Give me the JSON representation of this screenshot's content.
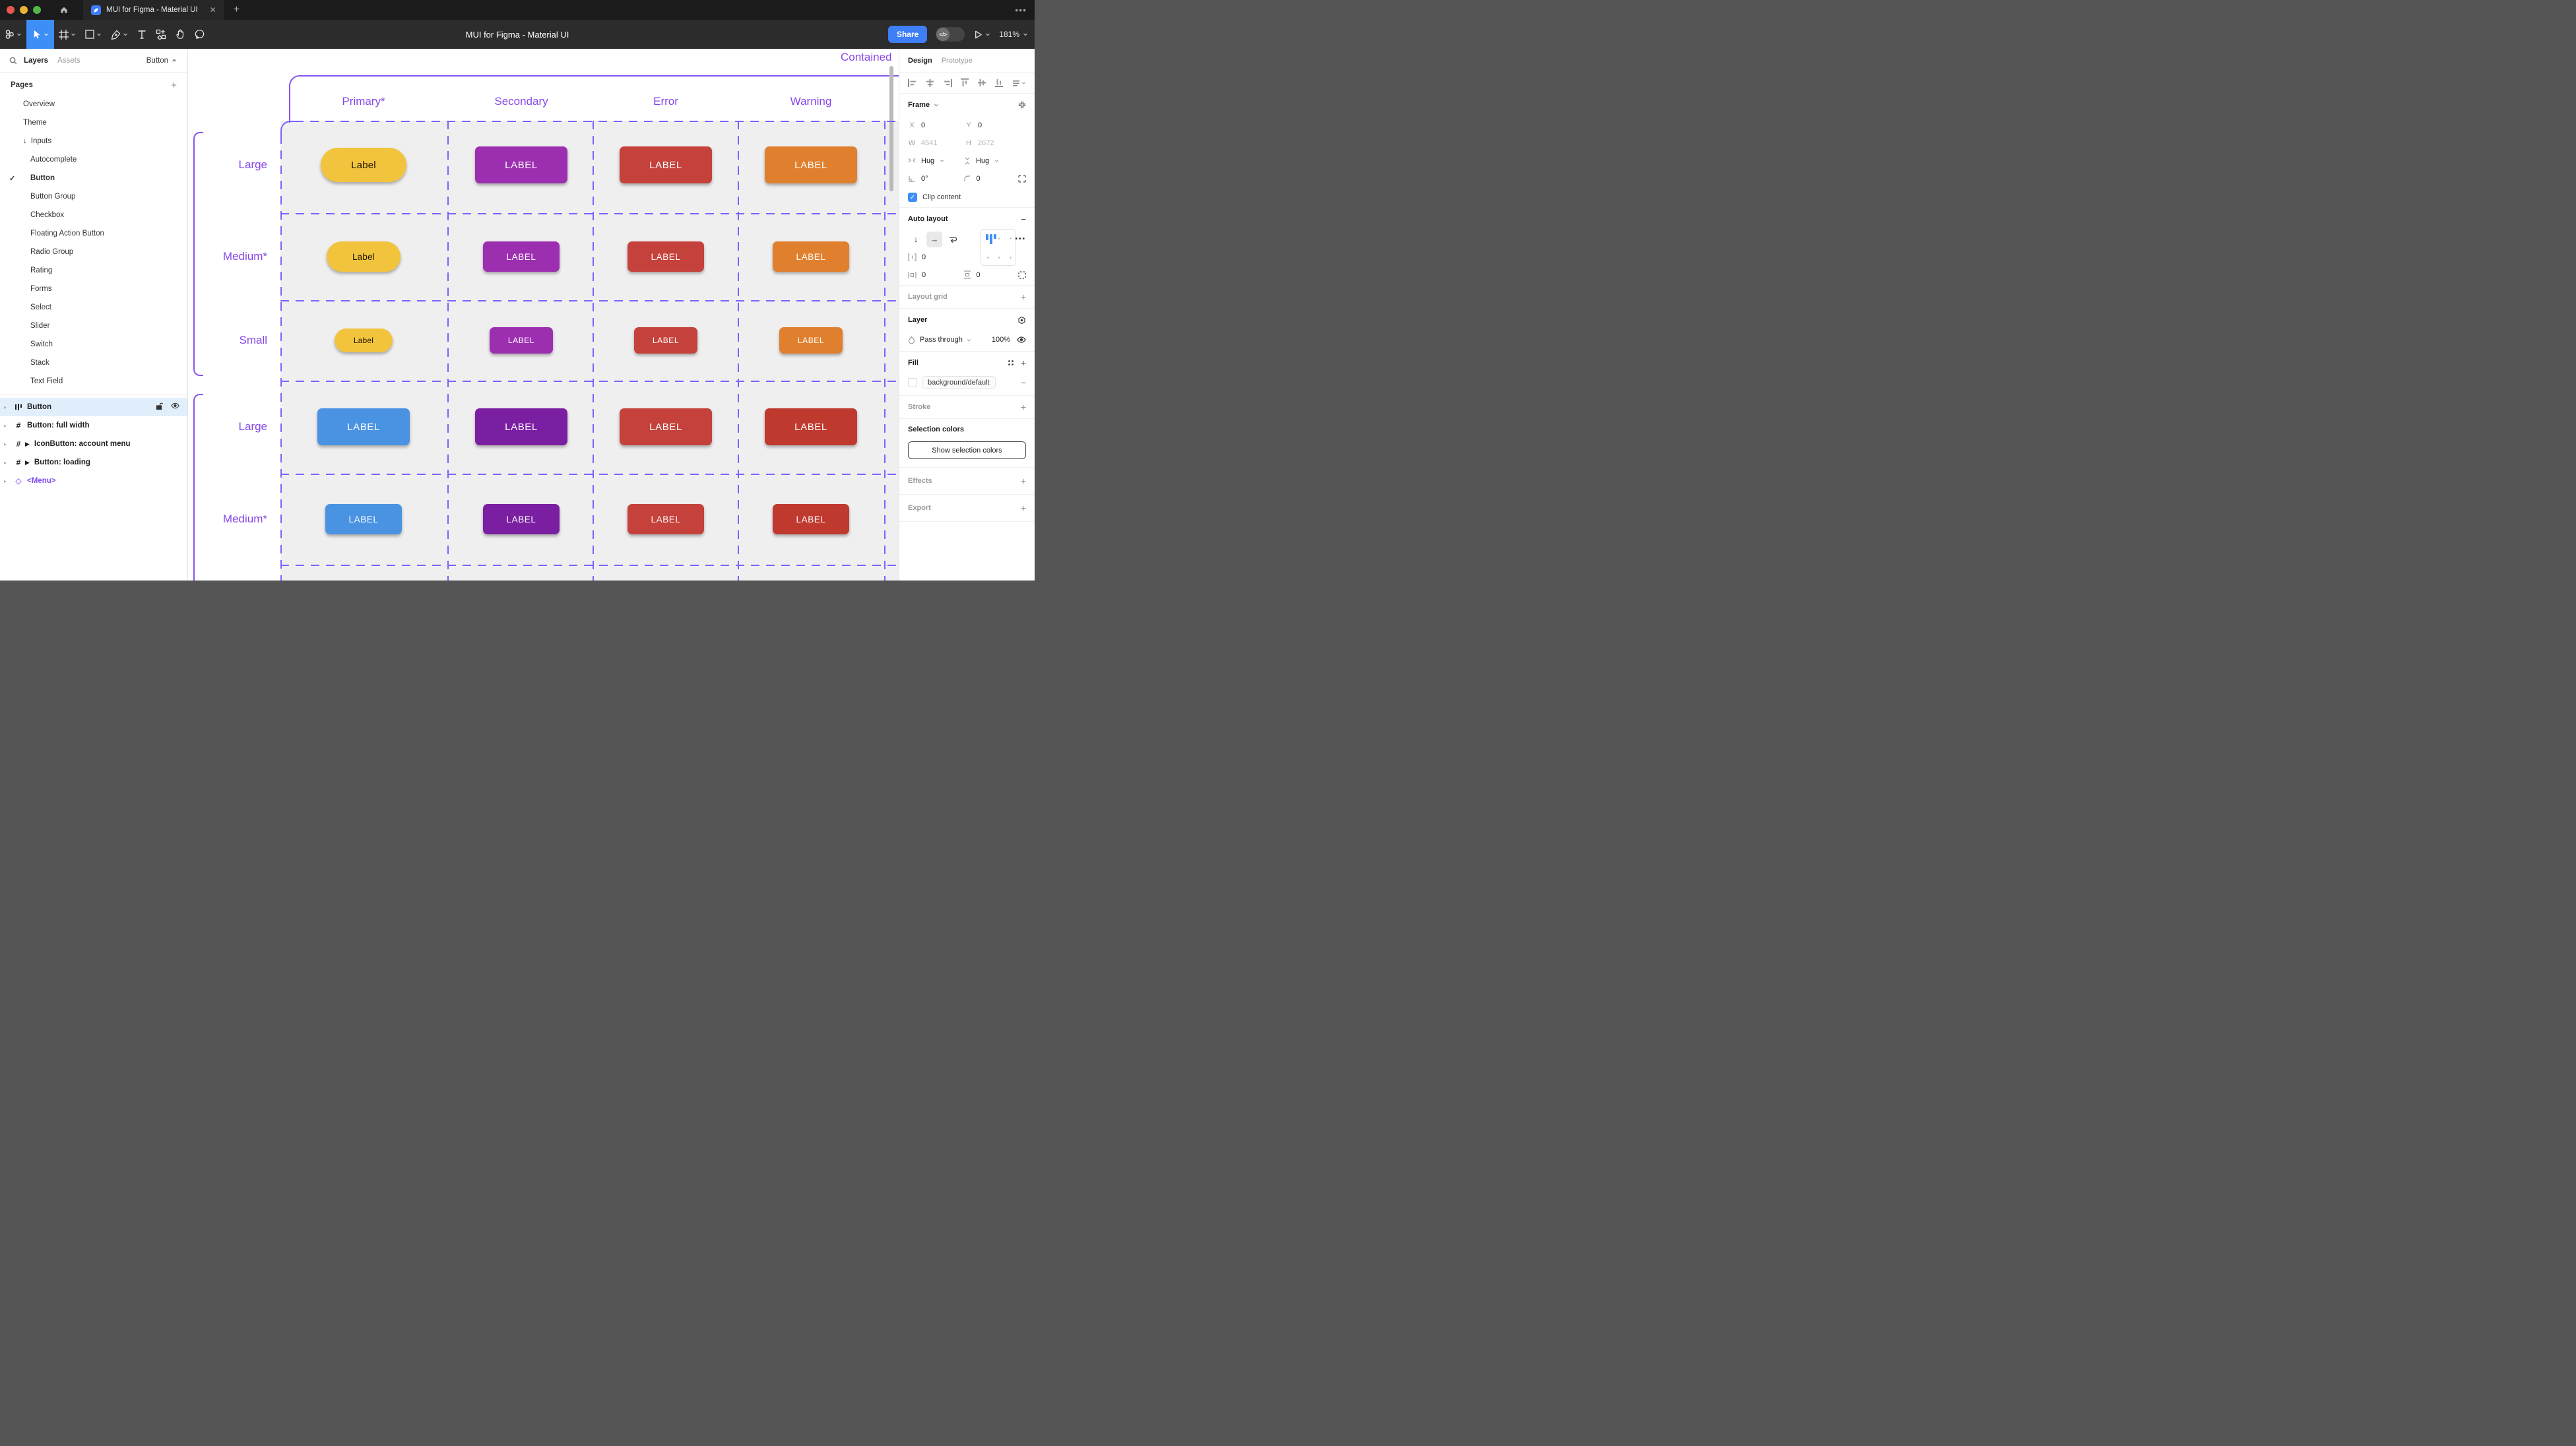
{
  "window": {
    "tab_title": "MUI for Figma - Material UI",
    "close_glyph": "✕",
    "new_tab_glyph": "+",
    "more_glyph": "•••"
  },
  "toolbar": {
    "title": "MUI for Figma - Material UI",
    "share_label": "Share",
    "dev_toggle_label": "</>",
    "zoom_level": "181%"
  },
  "left_panel": {
    "tabs": {
      "layers": "Layers",
      "assets": "Assets"
    },
    "selection_chip": "Button",
    "pages_title": "Pages",
    "pages": [
      {
        "label": "Overview"
      },
      {
        "label": "Theme"
      },
      {
        "label": "Inputs",
        "prefix": "↓"
      },
      {
        "label": "Autocomplete",
        "indent": 1
      },
      {
        "label": "Button",
        "indent": 1,
        "checked": 1,
        "bold": 1
      },
      {
        "label": "Button Group",
        "indent": 1
      },
      {
        "label": "Checkbox",
        "indent": 1
      },
      {
        "label": "Floating Action Button",
        "indent": 1
      },
      {
        "label": "Radio Group",
        "indent": 1
      },
      {
        "label": "Rating",
        "indent": 1
      },
      {
        "label": "Forms",
        "indent": 1
      },
      {
        "label": "Select",
        "indent": 1
      },
      {
        "label": "Slider",
        "indent": 1
      },
      {
        "label": "Switch",
        "indent": 1
      },
      {
        "label": "Stack",
        "indent": 1
      },
      {
        "label": "Text Field",
        "indent": 1
      }
    ],
    "layers": [
      {
        "label": "Button",
        "icon": "autolayout",
        "selected": 1
      },
      {
        "label": "Button: full width",
        "icon": "frame"
      },
      {
        "label": "IconButton: account menu",
        "icon": "frame",
        "component": 1
      },
      {
        "label": "Button: loading",
        "icon": "frame",
        "component": 1
      },
      {
        "label": "<Menu>",
        "icon": "instance",
        "instance": 1
      }
    ]
  },
  "canvas": {
    "frame_title": "Contained",
    "columns": [
      "Primary*",
      "Secondary",
      "Error",
      "Warning"
    ],
    "rows": [
      {
        "label": "Large",
        "size": "lg",
        "group": 0,
        "cells": [
          {
            "text": "Label",
            "bg": "#F2C43D",
            "fg": "#201600",
            "pill": 1
          },
          {
            "text": "LABEL",
            "bg": "#9C2FB0"
          },
          {
            "text": "LABEL",
            "bg": "#C4423B"
          },
          {
            "text": "LABEL",
            "bg": "#E0802F"
          }
        ]
      },
      {
        "label": "Medium*",
        "size": "md",
        "group": 0,
        "cells": [
          {
            "text": "Label",
            "bg": "#F2C43D",
            "fg": "#201600",
            "pill": 1
          },
          {
            "text": "LABEL",
            "bg": "#9C2FB0"
          },
          {
            "text": "LABEL",
            "bg": "#C4423B"
          },
          {
            "text": "LABEL",
            "bg": "#E0802F"
          }
        ]
      },
      {
        "label": "Small",
        "size": "sm",
        "group": 0,
        "cells": [
          {
            "text": "Label",
            "bg": "#F2C43D",
            "fg": "#201600",
            "pill": 1
          },
          {
            "text": "LABEL",
            "bg": "#9C2FB0"
          },
          {
            "text": "LABEL",
            "bg": "#C4423B"
          },
          {
            "text": "LABEL",
            "bg": "#E0802F"
          }
        ]
      },
      {
        "label": "Large",
        "size": "lg",
        "group": 1,
        "cells": [
          {
            "text": "LABEL",
            "bg": "#4A93E3"
          },
          {
            "text": "LABEL",
            "bg": "#7B1FA2"
          },
          {
            "text": "LABEL",
            "bg": "#C4423B"
          },
          {
            "text": "LABEL",
            "bg": "#C0392F"
          }
        ]
      },
      {
        "label": "Medium*",
        "size": "md",
        "group": 1,
        "cells": [
          {
            "text": "LABEL",
            "bg": "#4A93E3"
          },
          {
            "text": "LABEL",
            "bg": "#7B1FA2"
          },
          {
            "text": "LABEL",
            "bg": "#C4423B"
          },
          {
            "text": "LABEL",
            "bg": "#C0392F"
          }
        ]
      }
    ],
    "colors": {
      "annotation": "#7B61FF",
      "label_text": "#8547EA",
      "table_bg": "#F0EFF0"
    }
  },
  "right_panel": {
    "tabs": {
      "design": "Design",
      "prototype": "Prototype"
    },
    "frame": {
      "title": "Frame",
      "x_label": "X",
      "x": "0",
      "y_label": "Y",
      "y": "0",
      "w_label": "W",
      "w": "4541",
      "h_label": "H",
      "h": "2672",
      "hug_h": "Hug",
      "hug_v": "Hug",
      "rotation": "0°",
      "radius": "0",
      "clip": "Clip content"
    },
    "auto_layout": {
      "title": "Auto layout",
      "gap": "0",
      "pad_h": "0",
      "pad_v": "0",
      "remove_glyph": "−"
    },
    "layout_grid": {
      "title": "Layout grid",
      "add_glyph": "+"
    },
    "layer": {
      "title": "Layer",
      "blend": "Pass through",
      "opacity": "100%"
    },
    "fill": {
      "title": "Fill",
      "token": "background/default",
      "add_glyph": "+",
      "remove_glyph": "−"
    },
    "stroke": {
      "title": "Stroke",
      "add_glyph": "+"
    },
    "selection_colors": {
      "title": "Selection colors",
      "button_label": "Show selection colors"
    },
    "effects": {
      "title": "Effects",
      "add_glyph": "+"
    },
    "export": {
      "title": "Export",
      "add_glyph": "+"
    }
  }
}
